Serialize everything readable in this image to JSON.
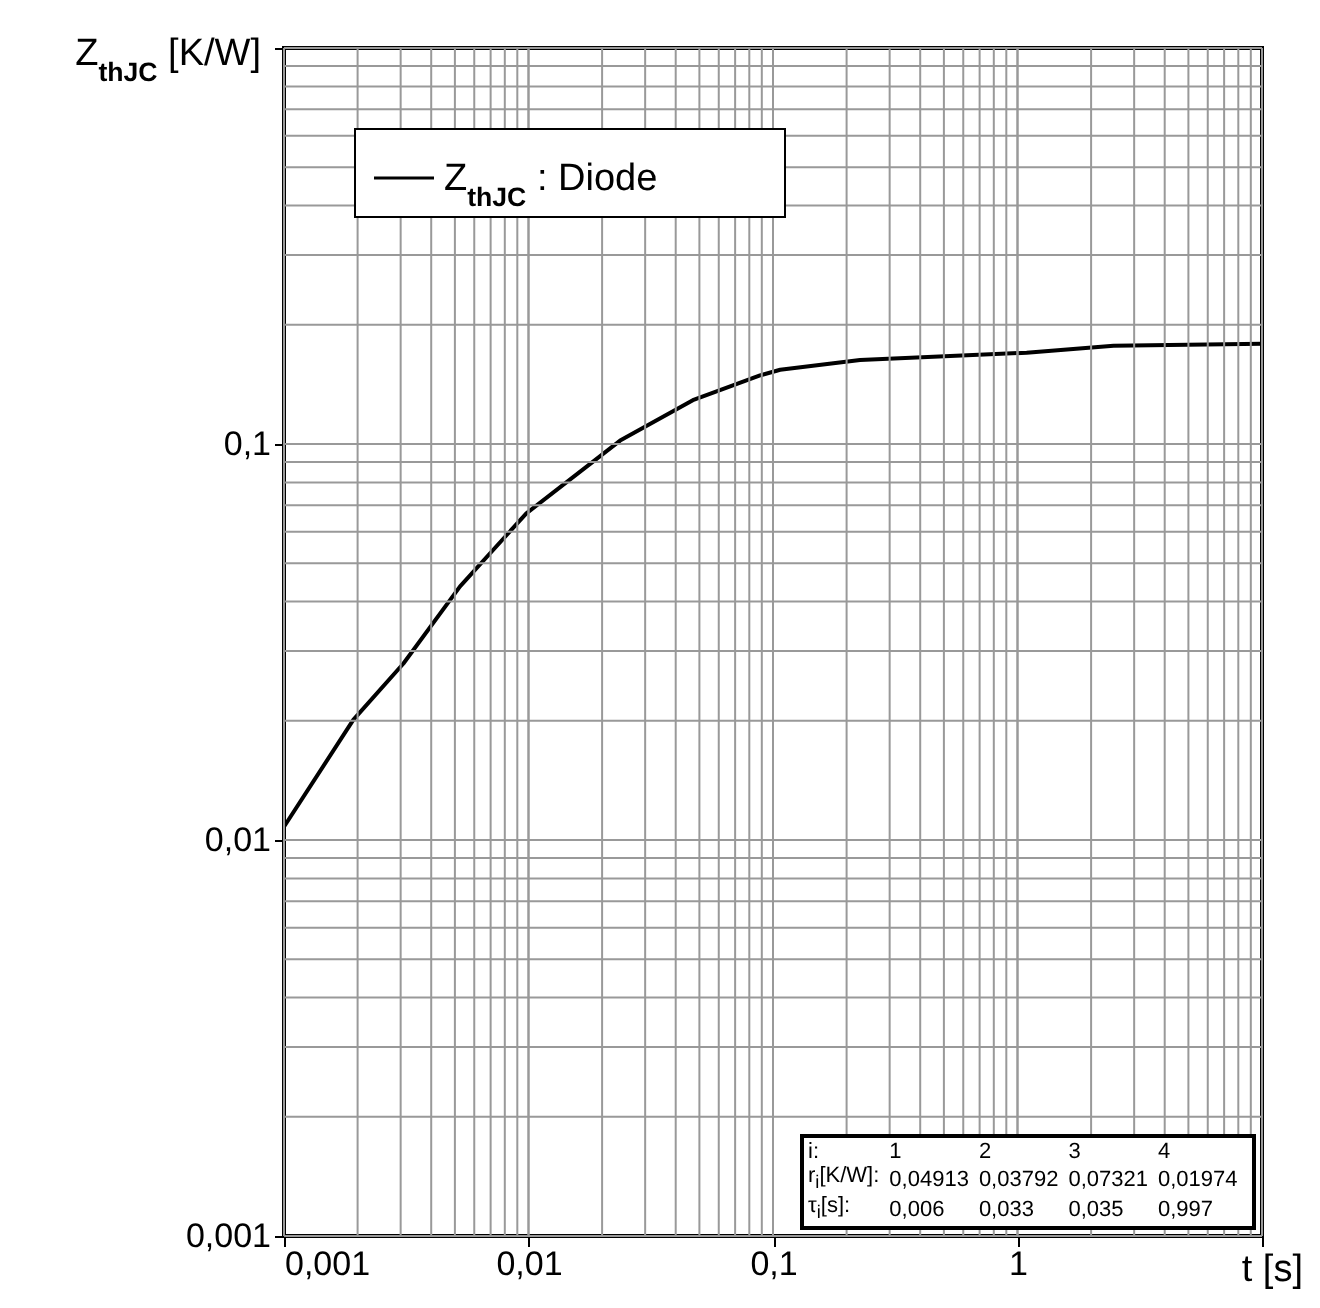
{
  "chart_data": {
    "type": "line",
    "xlabel": "t [s]",
    "ylabel": "Z$_{thJC}$ [K/W]",
    "log": "xy",
    "xlim": [
      0.001,
      10
    ],
    "ylim": [
      0.001,
      1
    ],
    "xticks": [
      {
        "value": 0.001,
        "label": "0,001"
      },
      {
        "value": 0.01,
        "label": "0,01"
      },
      {
        "value": 0.1,
        "label": "0,1"
      },
      1,
      {
        "value": 10,
        "label": null
      }
    ],
    "yticks": [
      {
        "value": 0.001,
        "label": "0,001"
      },
      {
        "value": 0.01,
        "label": "0,01"
      },
      {
        "value": 0.1,
        "label": "0,1"
      },
      {
        "value": 1,
        "label": null
      }
    ],
    "grid": true,
    "legend": "top left",
    "series": [
      {
        "name": "Z$_{thJC}$ : Diode",
        "color": "#000000",
        "x": [
          0.001,
          0.00192,
          0.00308,
          0.00525,
          0.0098,
          0.0237,
          0.047,
          0.0885,
          0.107,
          0.227,
          1.09,
          2.47,
          10
        ],
        "values": [
          0.0108,
          0.0201,
          0.0279,
          0.0437,
          0.0668,
          0.102,
          0.129,
          0.149,
          0.154,
          0.163,
          0.17,
          0.177,
          0.179
        ]
      }
    ],
    "annotations": [
      "i: 1 2 3 4",
      "r$_{i}$[K/W]: 0,04913 0,03792 0,07321 0,01974",
      "τ$_{i}$[s]: 0,006 0,033 0,035 0,997"
    ]
  }
}
